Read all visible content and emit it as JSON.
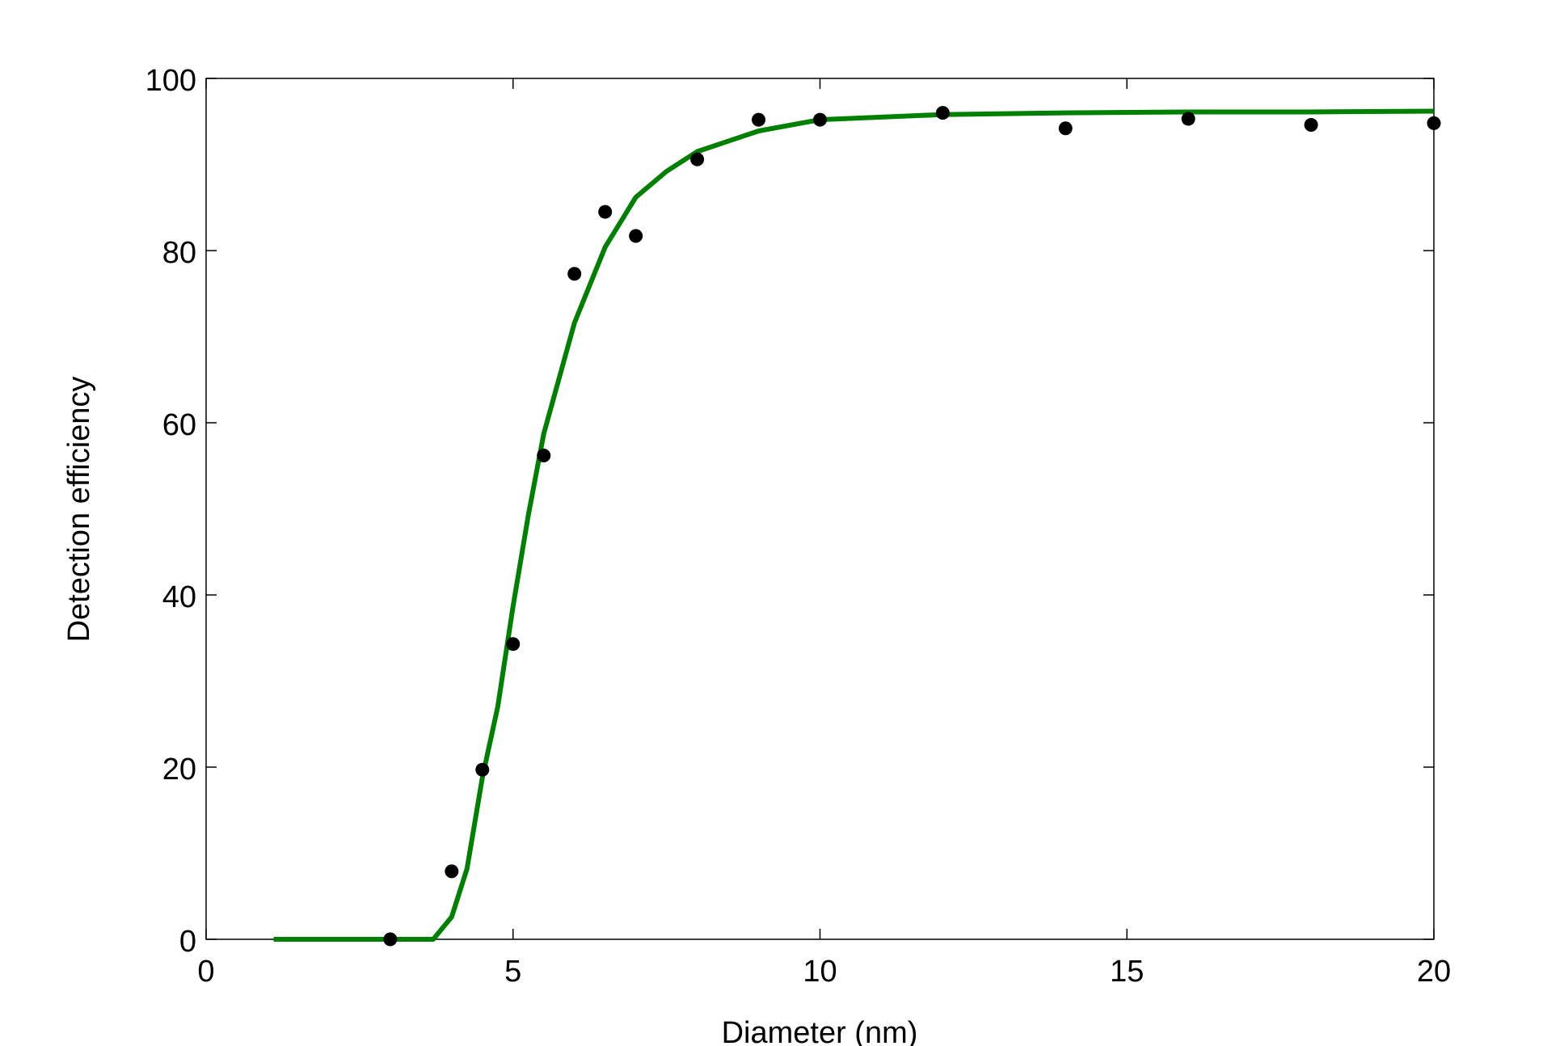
{
  "chart_data": {
    "type": "scatter",
    "xlabel": "Diameter (nm)",
    "ylabel": "Detection efficiency",
    "xlim": [
      0,
      20
    ],
    "xticks": [
      0,
      5,
      10,
      15,
      20
    ],
    "ylim": [
      0,
      100
    ],
    "yticks": [
      0,
      20,
      40,
      60,
      80,
      100
    ],
    "series": [
      {
        "type": "scatter",
        "color": "#000000",
        "x": [
          3,
          4,
          4.5,
          5,
          5.5,
          6,
          6.5,
          7,
          8,
          9,
          10,
          12,
          14,
          16,
          18,
          20
        ],
        "values": [
          0,
          7.9,
          19.7,
          34.3,
          56.2,
          77.3,
          84.5,
          81.7,
          90.6,
          95.2,
          95.2,
          96.0,
          94.2,
          95.3,
          94.6,
          94.8
        ]
      },
      {
        "type": "line",
        "color": "#008000",
        "x": [
          1.1,
          2,
          3,
          3.7,
          4,
          4.25,
          4.5,
          4.75,
          5,
          5.25,
          5.5,
          6,
          6.5,
          7,
          7.5,
          8,
          9,
          10,
          12,
          14,
          16,
          18,
          20
        ],
        "values": [
          0,
          0,
          0,
          0,
          2.6,
          8.2,
          18.8,
          27,
          38.7,
          49.3,
          58.7,
          71.6,
          80.4,
          86.2,
          89.2,
          91.5,
          93.9,
          95.2,
          95.8,
          96.0,
          96.1,
          96.1,
          96.2
        ]
      }
    ]
  }
}
